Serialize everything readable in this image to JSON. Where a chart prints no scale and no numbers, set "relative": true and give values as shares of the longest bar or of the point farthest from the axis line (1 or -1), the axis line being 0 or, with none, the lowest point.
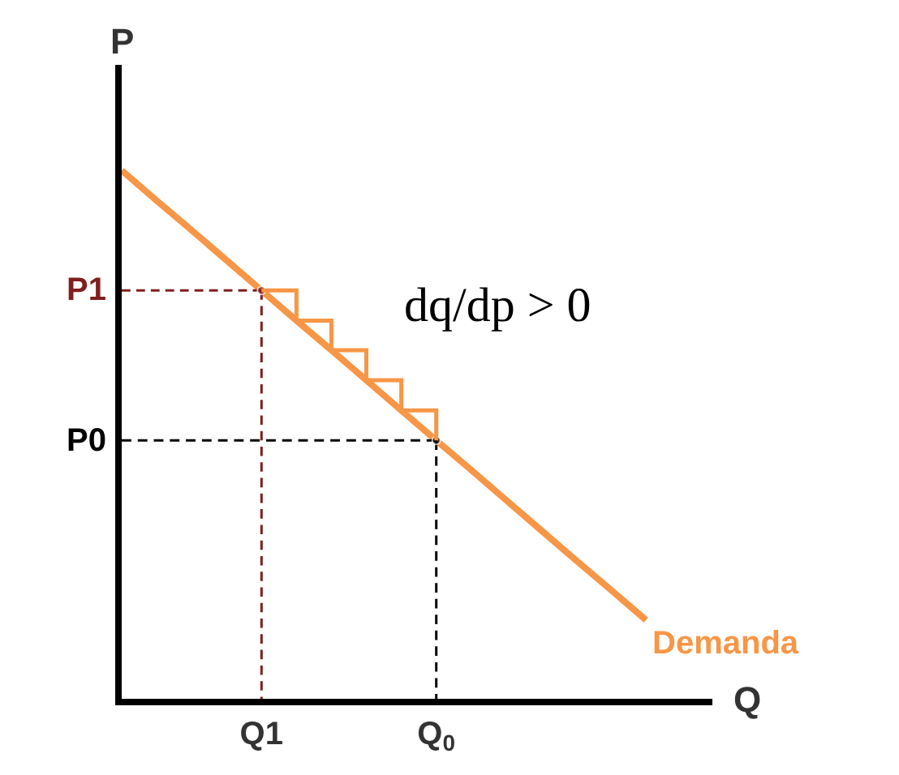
{
  "chart_data": {
    "type": "line",
    "relative": true,
    "xlabel": "Q",
    "ylabel": "P",
    "categories": [
      null,
      null,
      null,
      null,
      "Q1",
      null,
      null,
      null,
      null,
      "Q$_{0}$",
      null,
      null,
      null,
      null,
      null,
      null,
      null
    ],
    "legend": false,
    "marker": "none",
    "annotations": [
      "dq/dp > 0"
    ],
    "series": [
      {
        "name": "Demanda",
        "color": "#f79646",
        "values": [
          1,
          0.943,
          0.887,
          0.83,
          0.773,
          0.716,
          0.66,
          0.603,
          0.546,
          0.489,
          0.433,
          0.376,
          0.319,
          0.262,
          0.206,
          0.149,
          null
        ]
      },
      {
        "name": "P1",
        "color": "#7f1f1f",
        "line_style": "dashed",
        "values": [
          0.773,
          0.773,
          0.773,
          0.773,
          0.773,
          null,
          null,
          null,
          null,
          null,
          null,
          null,
          null,
          null,
          null,
          null,
          null
        ]
      },
      {
        "name": "P0",
        "color": "#000000",
        "line_style": "dashed",
        "values": [
          0.489,
          0.489,
          0.489,
          0.489,
          0.489,
          0.489,
          0.489,
          0.489,
          0.489,
          0.489,
          null,
          null,
          null,
          null,
          null,
          null,
          null
        ]
      },
      {
        "type": "lollipop",
        "color": "#7f1f1f",
        "line_style": "dashed",
        "marker": "circle",
        "values": [
          null,
          null,
          null,
          null,
          0.773,
          null,
          null,
          null,
          null,
          null,
          null,
          null,
          null,
          null,
          null,
          null,
          null
        ]
      },
      {
        "type": "lollipop",
        "color": "#000000",
        "line_style": "dashed",
        "marker": "circle",
        "values": [
          null,
          null,
          null,
          null,
          null,
          null,
          null,
          null,
          null,
          0.489,
          null,
          null,
          null,
          null,
          null,
          null,
          null
        ]
      },
      {
        "type": "step",
        "color": "#f79646",
        "values": [
          null,
          null,
          null,
          null,
          0.773,
          0.716,
          0.66,
          0.603,
          0.546,
          0.489,
          null,
          null,
          null,
          null,
          null,
          null,
          null
        ]
      }
    ]
  }
}
